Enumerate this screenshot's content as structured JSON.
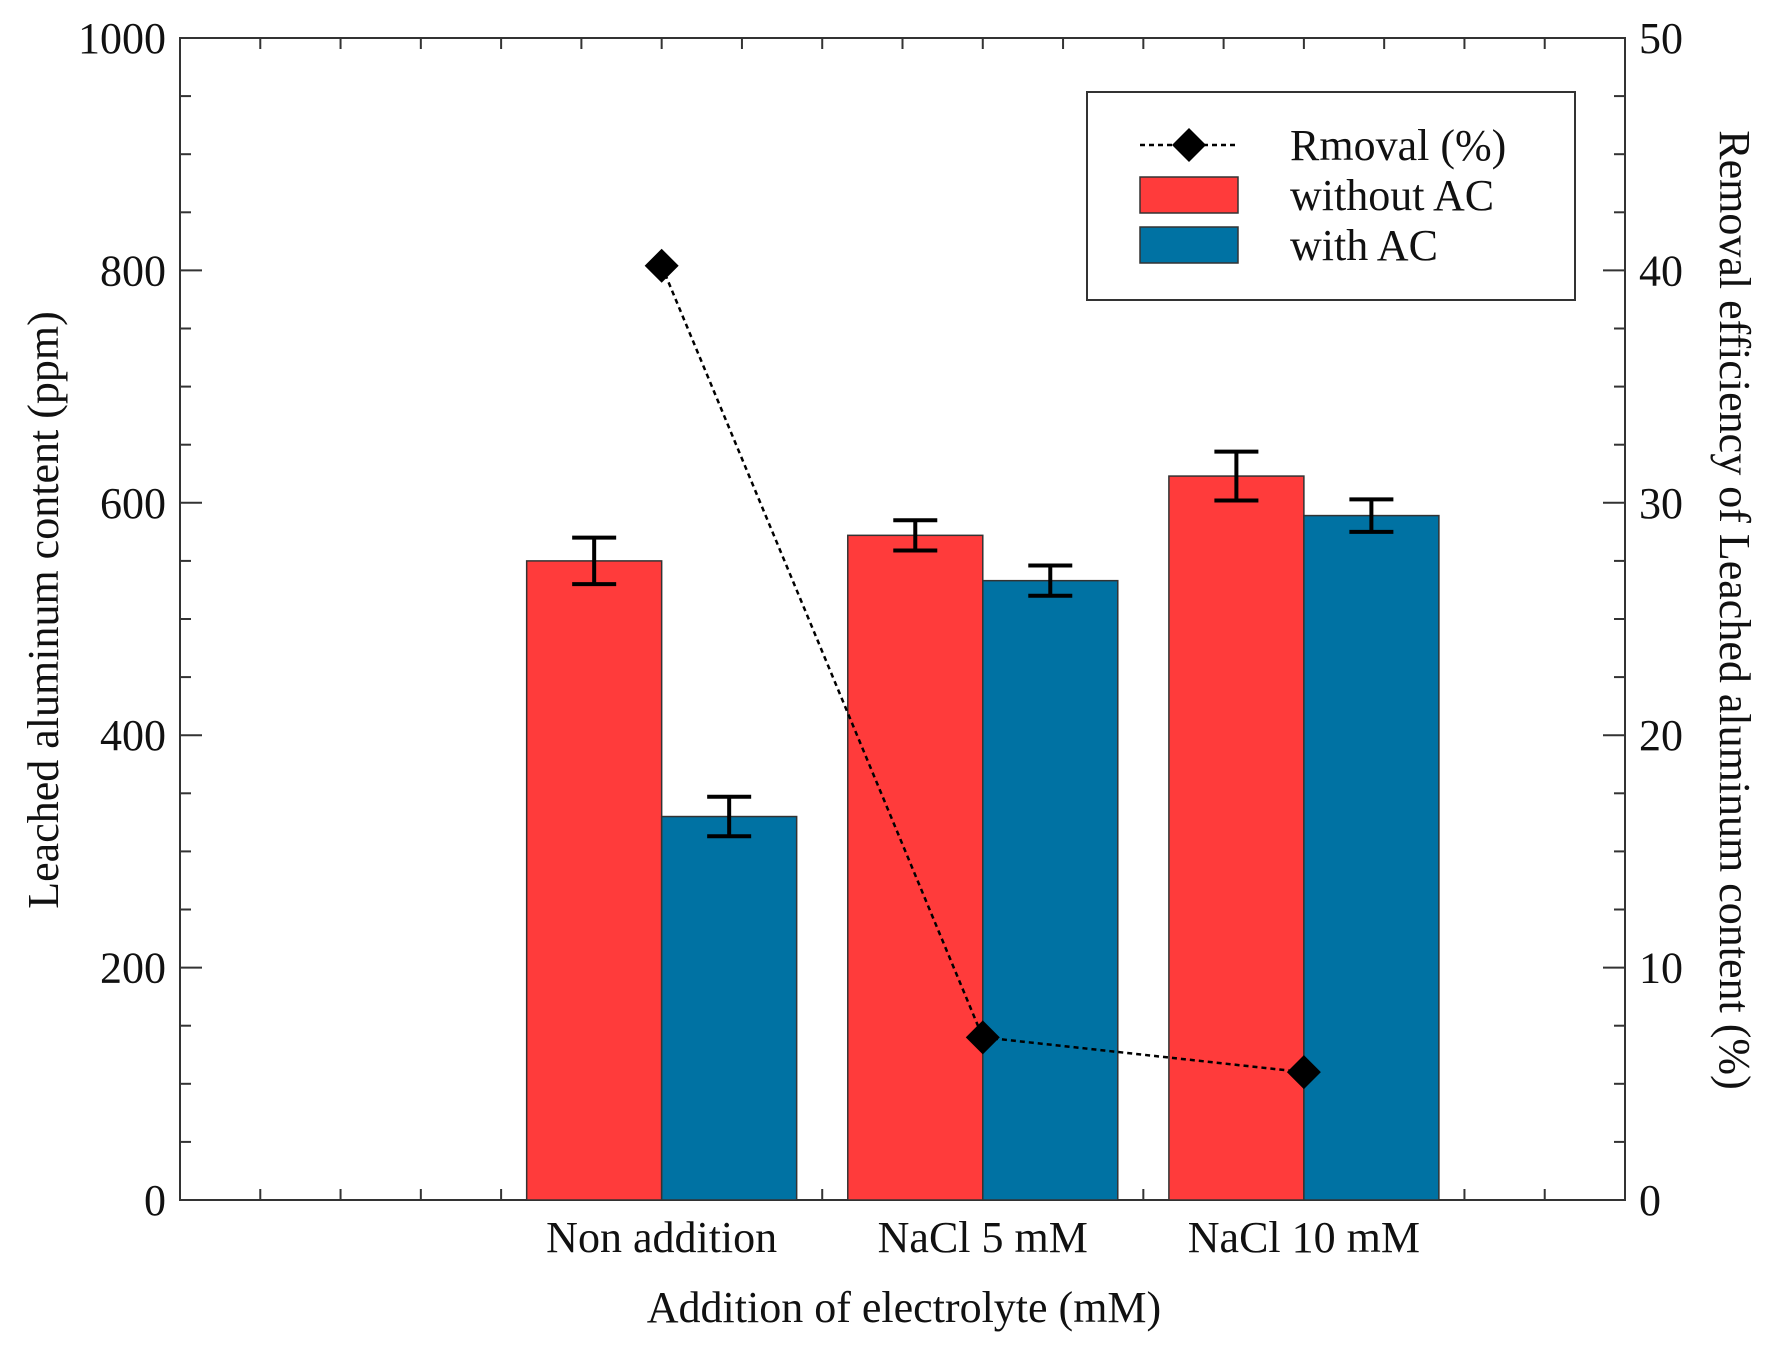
{
  "chart_data": {
    "type": "bar",
    "title": "",
    "categories": [
      "Non addition",
      "NaCl 5 mM",
      "NaCl 10 mM"
    ],
    "xlabel": "Addition of electrolyte (mM)",
    "ylabel": "Leached aluminum content (ppm)",
    "ylabel_right": "Removal efficiency of Leached aluminum content (%)",
    "ylim": [
      0,
      1000
    ],
    "ylim_right": [
      0,
      50
    ],
    "yticks": [
      0,
      200,
      400,
      600,
      800,
      1000
    ],
    "yticks_right": [
      0,
      10,
      20,
      30,
      40,
      50
    ],
    "grid": false,
    "legend_position": "top-right",
    "series": [
      {
        "name": "without AC",
        "kind": "bar",
        "axis": "left",
        "color": "#ff3b3b",
        "values": [
          550,
          572,
          623
        ],
        "errors": [
          20,
          13,
          21
        ]
      },
      {
        "name": "with AC",
        "kind": "bar",
        "axis": "left",
        "color": "#0072a3",
        "values": [
          330,
          533,
          589
        ],
        "errors": [
          17,
          13,
          14
        ]
      },
      {
        "name": "Rmoval (%)",
        "kind": "line",
        "axis": "right",
        "color": "#000000",
        "marker": "diamond",
        "line_style": "dotted",
        "values": [
          40.2,
          7.0,
          5.5
        ]
      }
    ]
  }
}
